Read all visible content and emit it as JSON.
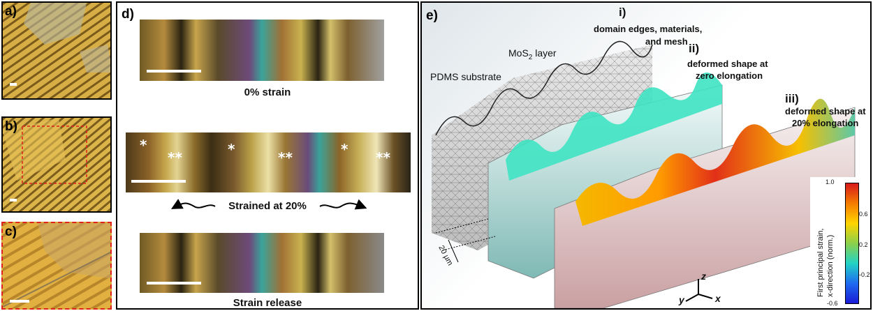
{
  "panel_a": {
    "label": "a)"
  },
  "panel_b": {
    "label": "b)"
  },
  "panel_c": {
    "label": "c)"
  },
  "panel_d": {
    "label": "d)",
    "caption_top": "0% strain",
    "caption_middle": "Strained at 20%",
    "caption_bottom": "Strain release",
    "stars": [
      "*",
      "**",
      "*",
      "**",
      "*",
      "**"
    ]
  },
  "panel_e": {
    "label": "e)",
    "step_i": "i)",
    "step_i_text_1": "domain edges, materials,",
    "step_i_text_2": "and mesh",
    "step_ii": "ii)",
    "step_ii_text_1": "deformed shape at",
    "step_ii_text_2": "zero elongation",
    "step_iii": "iii)",
    "step_iii_text_1": "deformed shape at",
    "step_iii_text_2": "20% elongation",
    "mos2_label": "MoS",
    "mos2_sub": "2",
    "mos2_suffix": " layer",
    "pdms_label": "PDMS substrate",
    "scale_label": "20 µm",
    "axis_z": "z",
    "axis_y": "y",
    "axis_x": "x",
    "colorbar": {
      "title_1": "First principal strain,",
      "title_2": "x-direction (norm.)",
      "ticks": [
        "1.0",
        "0.6",
        "0.2",
        "-0.2",
        "-0.6"
      ],
      "colors": [
        "#d7191c",
        "#f57c00",
        "#ffd400",
        "#8cd04a",
        "#22d3c5",
        "#1e6bf0",
        "#1b1bd6"
      ]
    }
  }
}
